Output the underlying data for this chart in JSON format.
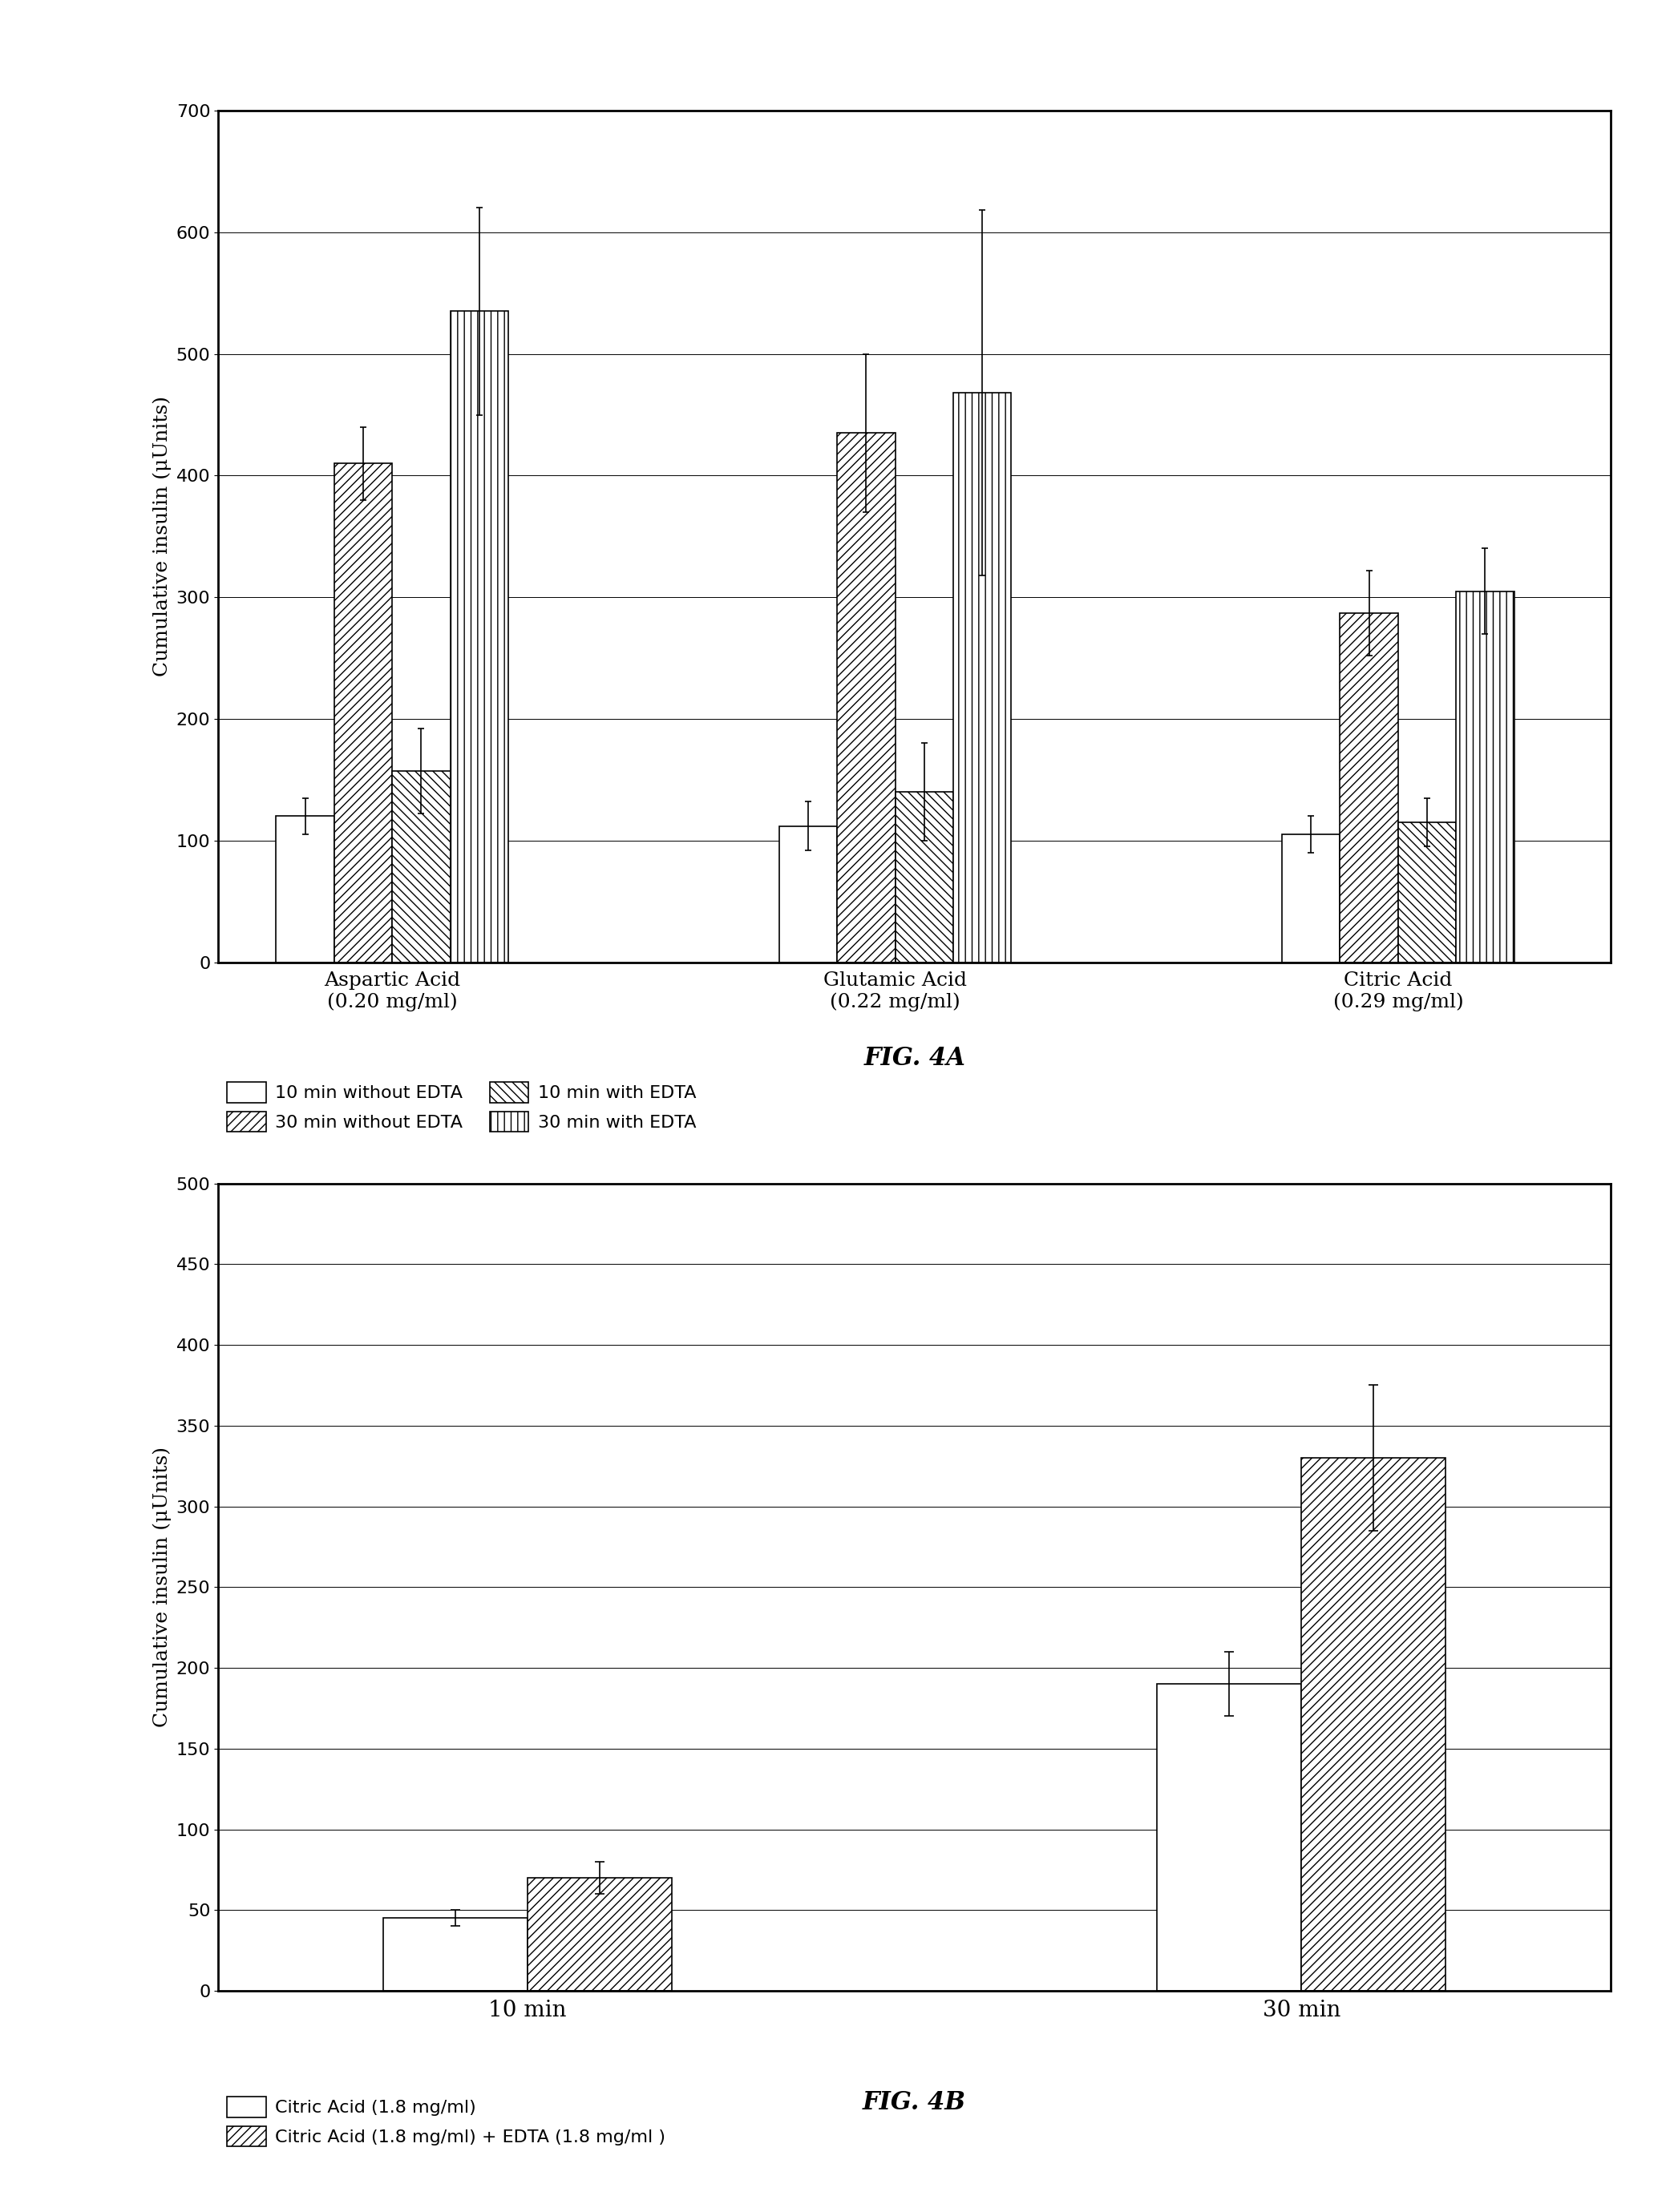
{
  "fig4a": {
    "title": "FIG. 4A",
    "ylabel": "Cumulative insulin (μUnits)",
    "ylim": [
      0,
      700
    ],
    "yticks": [
      0,
      100,
      200,
      300,
      400,
      500,
      600,
      700
    ],
    "groups": [
      "Aspartic Acid\n(0.20 mg/ml)",
      "Glutamic Acid\n(0.22 mg/ml)",
      "Citric Acid\n(0.29 mg/ml)"
    ],
    "bar_values": [
      [
        120,
        410,
        157,
        535
      ],
      [
        112,
        435,
        140,
        468
      ],
      [
        105,
        287,
        115,
        305
      ]
    ],
    "bar_errors": [
      [
        15,
        30,
        35,
        85
      ],
      [
        20,
        65,
        40,
        150
      ],
      [
        15,
        35,
        20,
        35
      ]
    ],
    "legend_labels": [
      "10 min without EDTA",
      "30 min without EDTA",
      "10 min with EDTA",
      "30 min with EDTA"
    ],
    "hatch_patterns": [
      "",
      "///",
      "\\\\\\",
      "||"
    ]
  },
  "fig4b": {
    "title": "FIG. 4B",
    "ylabel": "Cumulative insulin (μUnits)",
    "ylim": [
      0,
      500
    ],
    "yticks": [
      0,
      50,
      100,
      150,
      200,
      250,
      300,
      350,
      400,
      450,
      500
    ],
    "groups": [
      "10 min",
      "30 min"
    ],
    "bar_values": [
      [
        45,
        70
      ],
      [
        190,
        330
      ]
    ],
    "bar_errors": [
      [
        5,
        10
      ],
      [
        20,
        45
      ]
    ],
    "legend_labels": [
      "Citric Acid (1.8 mg/ml)",
      "Citric Acid (1.8 mg/ml) + EDTA (1.8 mg/ml )"
    ],
    "hatch_patterns": [
      "",
      "///"
    ]
  }
}
